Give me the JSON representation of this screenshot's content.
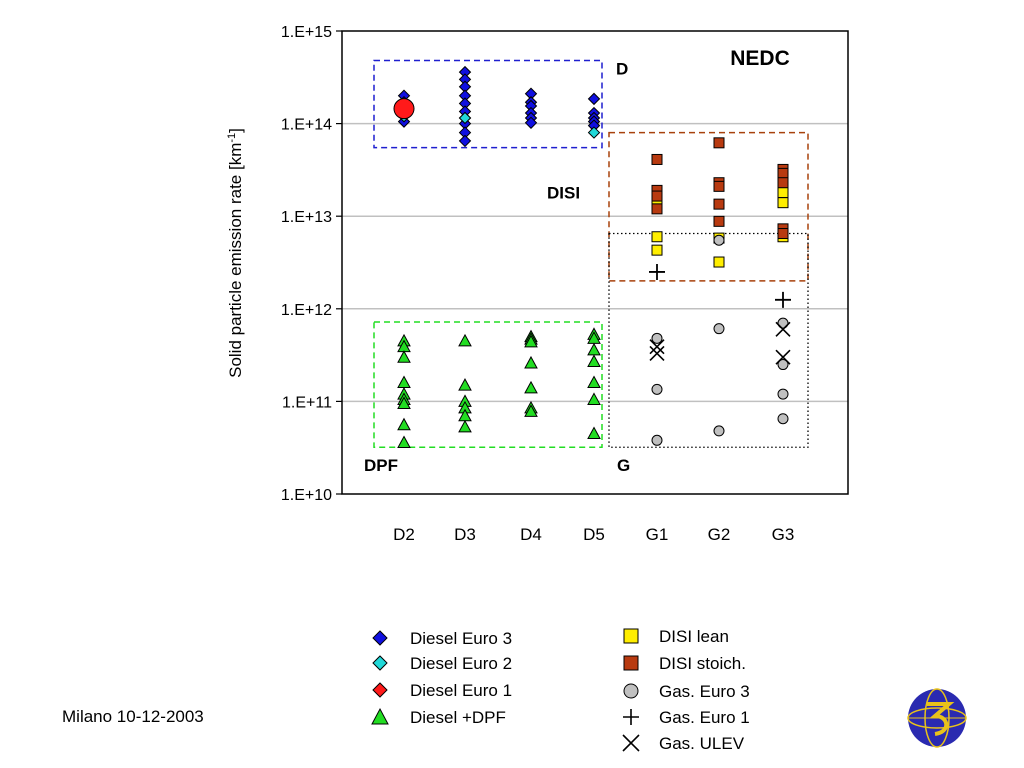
{
  "footer": {
    "text": "Milano 10-12-2003"
  },
  "logo": {
    "name": "globe-logo-icon",
    "color": "#2a2ab0",
    "ring_color": "#e8c21a"
  },
  "colors": {
    "diesel_euro3": "#1010e0",
    "diesel_euro2": "#20d8d8",
    "diesel_euro1": "#ff1a1a",
    "diesel_dpf": "#22dd22",
    "disi_lean": "#ffee00",
    "disi_stoich": "#b83a10",
    "gas_euro3": "#c0c0c0",
    "box_D": "#1f1fcf",
    "box_DISI": "#a8420c",
    "box_DPF": "#22dd22",
    "box_G": "#000000",
    "gridline": "#c0c0c0"
  },
  "chart_data": {
    "type": "scatter",
    "title": "NEDC",
    "xlabel": "",
    "ylabel": "Solid particle emission rate [km",
    "ylabel_superscript": "-1",
    "ylabel_end": "]",
    "yscale": "log",
    "ylim": [
      10000000000.0,
      1000000000000000.0
    ],
    "yticks": [
      {
        "value": 10000000000.0,
        "label": "1.E+10"
      },
      {
        "value": 100000000000.0,
        "label": "1.E+11"
      },
      {
        "value": 1000000000000.0,
        "label": "1.E+12"
      },
      {
        "value": 10000000000000.0,
        "label": "1.E+13"
      },
      {
        "value": 100000000000000.0,
        "label": "1.E+14"
      },
      {
        "value": 1000000000000000.0,
        "label": "1.E+15"
      }
    ],
    "categories": [
      "D2",
      "D3",
      "D4",
      "D5",
      "G1",
      "G2",
      "G3"
    ],
    "grid": "horizontal",
    "legend_position": "bottom",
    "series": [
      {
        "name": "Diesel Euro 3",
        "marker": "diamond",
        "color": "#1010e0",
        "points": [
          [
            "D2",
            200000000000000.0
          ],
          [
            "D2",
            170000000000000.0
          ],
          [
            "D2",
            150000000000000.0
          ],
          [
            "D2",
            135000000000000.0
          ],
          [
            "D2",
            120000000000000.0
          ],
          [
            "D2",
            105000000000000.0
          ],
          [
            "D3",
            360000000000000.0
          ],
          [
            "D3",
            300000000000000.0
          ],
          [
            "D3",
            250000000000000.0
          ],
          [
            "D3",
            200000000000000.0
          ],
          [
            "D3",
            165000000000000.0
          ],
          [
            "D3",
            135000000000000.0
          ],
          [
            "D3",
            115000000000000.0
          ],
          [
            "D3",
            100000000000000.0
          ],
          [
            "D3",
            80000000000000.0
          ],
          [
            "D3",
            65000000000000.0
          ],
          [
            "D4",
            210000000000000.0
          ],
          [
            "D4",
            170000000000000.0
          ],
          [
            "D4",
            155000000000000.0
          ],
          [
            "D4",
            130000000000000.0
          ],
          [
            "D4",
            115000000000000.0
          ],
          [
            "D4",
            102000000000000.0
          ],
          [
            "D5",
            185000000000000.0
          ],
          [
            "D5",
            130000000000000.0
          ],
          [
            "D5",
            115000000000000.0
          ],
          [
            "D5",
            105000000000000.0
          ],
          [
            "D5",
            95000000000000.0
          ]
        ]
      },
      {
        "name": "Diesel Euro 2",
        "marker": "diamond",
        "color": "#20d8d8",
        "points": [
          [
            "D2",
            120000000000000.0
          ],
          [
            "D3",
            115000000000000.0
          ],
          [
            "D5",
            80000000000000.0
          ]
        ]
      },
      {
        "name": "Diesel Euro 1",
        "marker": "diamond",
        "color": "#ff1a1a",
        "points": [
          [
            "D2",
            145000000000000.0
          ]
        ]
      },
      {
        "name": "Diesel +DPF",
        "marker": "triangle",
        "color": "#22dd22",
        "points": [
          [
            "D2",
            450000000000.0
          ],
          [
            "D2",
            390000000000.0
          ],
          [
            "D2",
            300000000000.0
          ],
          [
            "D2",
            160000000000.0
          ],
          [
            "D2",
            120000000000.0
          ],
          [
            "D2",
            105000000000.0
          ],
          [
            "D2",
            95000000000.0
          ],
          [
            "D2",
            56000000000.0
          ],
          [
            "D2",
            36000000000.0
          ],
          [
            "D3",
            450000000000.0
          ],
          [
            "D3",
            150000000000.0
          ],
          [
            "D3",
            100000000000.0
          ],
          [
            "D3",
            85000000000.0
          ],
          [
            "D3",
            70000000000.0
          ],
          [
            "D3",
            53000000000.0
          ],
          [
            "D4",
            500000000000.0
          ],
          [
            "D4",
            470000000000.0
          ],
          [
            "D4",
            440000000000.0
          ],
          [
            "D4",
            260000000000.0
          ],
          [
            "D4",
            140000000000.0
          ],
          [
            "D4",
            85000000000.0
          ],
          [
            "D4",
            78000000000.0
          ],
          [
            "D5",
            530000000000.0
          ],
          [
            "D5",
            480000000000.0
          ],
          [
            "D5",
            360000000000.0
          ],
          [
            "D5",
            270000000000.0
          ],
          [
            "D5",
            160000000000.0
          ],
          [
            "D5",
            105000000000.0
          ],
          [
            "D5",
            45000000000.0
          ]
        ]
      },
      {
        "name": "DISI lean",
        "marker": "square",
        "color": "#ffee00",
        "points": [
          [
            "G1",
            15000000000000.0
          ],
          [
            "G1",
            6000000000000.0
          ],
          [
            "G1",
            4300000000000.0
          ],
          [
            "G2",
            5800000000000.0
          ],
          [
            "G2",
            3200000000000.0
          ],
          [
            "G3",
            18000000000000.0
          ],
          [
            "G3",
            14000000000000.0
          ],
          [
            "G3",
            6000000000000.0
          ]
        ]
      },
      {
        "name": "DISI stoich.",
        "marker": "square",
        "color": "#b83a10",
        "points": [
          [
            "G1",
            41000000000000.0
          ],
          [
            "G1",
            19000000000000.0
          ],
          [
            "G1",
            16500000000000.0
          ],
          [
            "G1",
            12000000000000.0
          ],
          [
            "G2",
            62000000000000.0
          ],
          [
            "G2",
            23000000000000.0
          ],
          [
            "G2",
            21000000000000.0
          ],
          [
            "G2",
            13500000000000.0
          ],
          [
            "G2",
            8800000000000.0
          ],
          [
            "G3",
            32000000000000.0
          ],
          [
            "G3",
            29000000000000.0
          ],
          [
            "G3",
            23000000000000.0
          ],
          [
            "G3",
            7300000000000.0
          ],
          [
            "G3",
            6500000000000.0
          ]
        ]
      },
      {
        "name": "Gas. Euro 3",
        "marker": "circle",
        "color": "#c0c0c0",
        "points": [
          [
            "G1",
            480000000000.0
          ],
          [
            "G1",
            135000000000.0
          ],
          [
            "G1",
            38000000000.0
          ],
          [
            "G2",
            5500000000000.0
          ],
          [
            "G2",
            610000000000.0
          ],
          [
            "G2",
            48000000000.0
          ],
          [
            "G3",
            700000000000.0
          ],
          [
            "G3",
            250000000000.0
          ],
          [
            "G3",
            120000000000.0
          ],
          [
            "G3",
            65000000000.0
          ]
        ]
      },
      {
        "name": "Gas. Euro 1",
        "marker": "plus",
        "color": "#000000",
        "points": [
          [
            "G1",
            2500000000000.0
          ],
          [
            "G3",
            1250000000000.0
          ]
        ]
      },
      {
        "name": "Gas. ULEV",
        "marker": "cross",
        "color": "#000000",
        "points": [
          [
            "G1",
            390000000000.0
          ],
          [
            "G1",
            330000000000.0
          ],
          [
            "G3",
            600000000000.0
          ],
          [
            "G3",
            300000000000.0
          ]
        ]
      }
    ],
    "group_boxes": [
      {
        "label": "D",
        "from": "D2",
        "to": "D5",
        "ymin": 55000000000000.0,
        "ymax": 480000000000000.0,
        "color": "#1f1fcf",
        "style": "dashed",
        "label_anchor": "right-top"
      },
      {
        "label": "DISI",
        "from": "G1",
        "to": "G3",
        "ymin": 2000000000000.0,
        "ymax": 80000000000000.0,
        "color": "#a8420c",
        "style": "dashed",
        "label_anchor": "left"
      },
      {
        "label": "DPF",
        "from": "D2",
        "to": "D5",
        "ymin": 32000000000.0,
        "ymax": 720000000000.0,
        "color": "#22dd22",
        "style": "dashed",
        "label_anchor": "left-bottom"
      },
      {
        "label": "G",
        "from": "G1",
        "to": "G3",
        "ymin": 32000000000.0,
        "ymax": 6500000000000.0,
        "color": "#000000",
        "style": "dotted",
        "label_anchor": "left-bottom"
      }
    ]
  }
}
